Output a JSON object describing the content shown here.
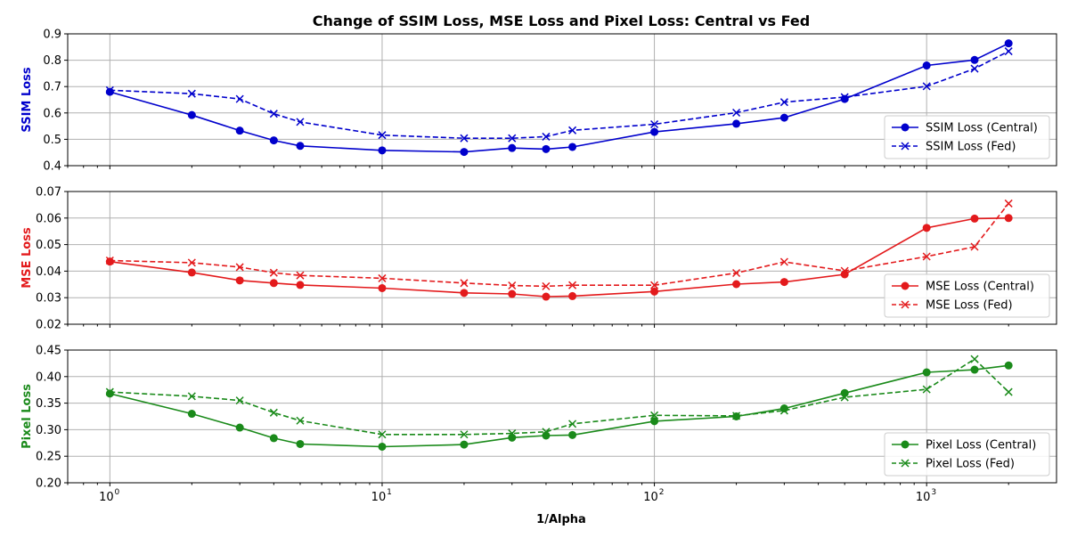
{
  "chart_data": {
    "type": "line",
    "title": "Change of SSIM Loss, MSE Loss and Pixel Loss: Central vs Fed",
    "xlabel": "1/Alpha",
    "xscale": "log",
    "x": [
      1,
      2,
      3,
      4,
      5,
      10,
      20,
      30,
      40,
      50,
      100,
      200,
      300,
      500,
      1000,
      1500,
      2000
    ],
    "xlim": [
      0.7,
      3000
    ],
    "xticks": [
      {
        "value": 1,
        "base": "10",
        "exp": "0"
      },
      {
        "value": 10,
        "base": "10",
        "exp": "1"
      },
      {
        "value": 100,
        "base": "10",
        "exp": "2"
      },
      {
        "value": 1000,
        "base": "10",
        "exp": "3"
      }
    ],
    "grid": true,
    "panels": [
      {
        "ylabel": "SSIM Loss",
        "color": "#0000cc",
        "ylim": [
          0.4,
          0.9
        ],
        "yticks": [
          "0.4",
          "0.5",
          "0.6",
          "0.7",
          "0.8",
          "0.9"
        ],
        "legend_position": "lower-right",
        "series": [
          {
            "name": "SSIM Loss (Central)",
            "marker": "circle",
            "linestyle": "solid",
            "values": [
              0.68,
              0.592,
              0.533,
              0.496,
              0.475,
              0.458,
              0.452,
              0.467,
              0.463,
              0.471,
              0.528,
              0.559,
              0.582,
              0.653,
              0.78,
              0.801,
              0.864
            ]
          },
          {
            "name": "SSIM Loss (Fed)",
            "marker": "x",
            "linestyle": "dashed",
            "values": [
              0.686,
              0.673,
              0.653,
              0.597,
              0.566,
              0.516,
              0.504,
              0.504,
              0.51,
              0.534,
              0.557,
              0.601,
              0.641,
              0.66,
              0.701,
              0.768,
              0.834
            ]
          }
        ]
      },
      {
        "ylabel": "MSE Loss",
        "color": "#e31a1c",
        "ylim": [
          0.02,
          0.07
        ],
        "yticks": [
          "0.02",
          "0.03",
          "0.04",
          "0.05",
          "0.06",
          "0.07"
        ],
        "legend_position": "lower-right",
        "series": [
          {
            "name": "MSE Loss (Central)",
            "marker": "circle",
            "linestyle": "solid",
            "values": [
              0.0436,
              0.0395,
              0.0365,
              0.0355,
              0.0348,
              0.0336,
              0.0318,
              0.0314,
              0.0304,
              0.0306,
              0.0323,
              0.0351,
              0.0359,
              0.0388,
              0.0563,
              0.0598,
              0.06
            ]
          },
          {
            "name": "MSE Loss (Fed)",
            "marker": "x",
            "linestyle": "dashed",
            "values": [
              0.044,
              0.0432,
              0.0415,
              0.0394,
              0.0384,
              0.0373,
              0.0355,
              0.0346,
              0.0343,
              0.0347,
              0.0347,
              0.0393,
              0.0435,
              0.0401,
              0.0455,
              0.0492,
              0.0655
            ]
          }
        ]
      },
      {
        "ylabel": "Pixel Loss",
        "color": "#1a8a1a",
        "ylim": [
          0.2,
          0.45
        ],
        "yticks": [
          "0.20",
          "0.25",
          "0.30",
          "0.35",
          "0.40",
          "0.45"
        ],
        "legend_position": "lower-right",
        "series": [
          {
            "name": "Pixel Loss (Central)",
            "marker": "circle",
            "linestyle": "solid",
            "values": [
              0.368,
              0.33,
              0.304,
              0.284,
              0.273,
              0.268,
              0.272,
              0.285,
              0.289,
              0.29,
              0.316,
              0.325,
              0.34,
              0.369,
              0.408,
              0.413,
              0.421
            ]
          },
          {
            "name": "Pixel Loss (Fed)",
            "marker": "x",
            "linestyle": "dashed",
            "values": [
              0.371,
              0.363,
              0.355,
              0.332,
              0.317,
              0.291,
              0.291,
              0.293,
              0.296,
              0.311,
              0.327,
              0.326,
              0.336,
              0.361,
              0.376,
              0.433,
              0.371
            ]
          }
        ]
      }
    ]
  }
}
